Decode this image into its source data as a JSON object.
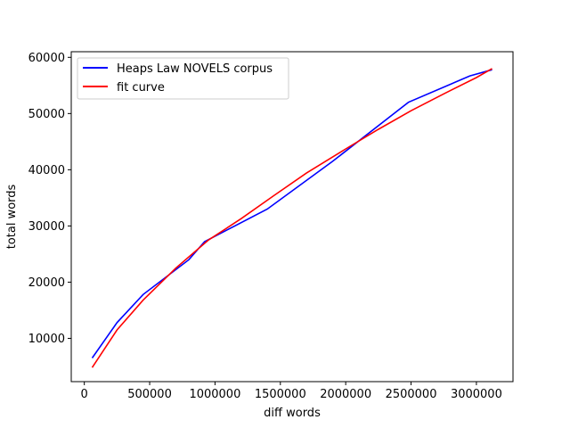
{
  "chart_data": {
    "type": "line",
    "title": "",
    "xlabel": "diff words",
    "ylabel": "total words",
    "xlim": [
      -100000,
      3280000
    ],
    "ylim": [
      2300000,
      61000
    ],
    "yrange": [
      2300,
      61000
    ],
    "x_ticks": [
      0,
      500000,
      1000000,
      1500000,
      2000000,
      2500000,
      3000000
    ],
    "x_tick_labels": [
      "0",
      "500000",
      "1000000",
      "1500000",
      "2000000",
      "2500000",
      "3000000"
    ],
    "y_ticks": [
      10000,
      20000,
      30000,
      40000,
      50000,
      60000
    ],
    "y_tick_labels": [
      "10000",
      "20000",
      "30000",
      "40000",
      "50000",
      "60000"
    ],
    "grid": false,
    "legend_position": "top-left",
    "series": [
      {
        "name": "Heaps Law NOVELS corpus",
        "color": "#0000ff",
        "x": [
          60000,
          250000,
          450000,
          800000,
          920000,
          1400000,
          1900000,
          2480000,
          2950000,
          3120000
        ],
        "y": [
          6500,
          12800,
          17800,
          24000,
          27200,
          33000,
          41500,
          52000,
          56700,
          57800
        ]
      },
      {
        "name": "fit curve",
        "color": "#ff0000",
        "x": [
          60000,
          250000,
          450000,
          700000,
          950000,
          1200000,
          1450000,
          1700000,
          2000000,
          2250000,
          2500000,
          2750000,
          3000000,
          3120000
        ],
        "y": [
          4800,
          11500,
          16800,
          22500,
          27500,
          31300,
          35400,
          39400,
          43700,
          47200,
          50500,
          53500,
          56400,
          58000
        ]
      }
    ]
  }
}
